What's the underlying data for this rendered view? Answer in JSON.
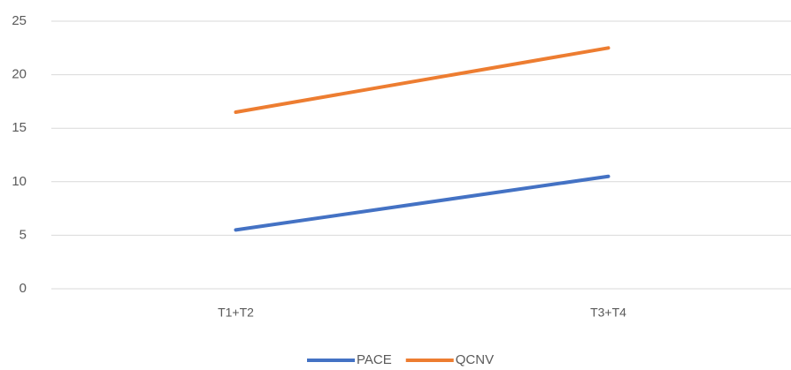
{
  "chart_data": {
    "type": "line",
    "categories": [
      "T1+T2",
      "T3+T4"
    ],
    "series": [
      {
        "name": "PACE",
        "color": "#4472c4",
        "values": [
          5.5,
          10.5
        ]
      },
      {
        "name": "QCNV",
        "color": "#ed7d31",
        "values": [
          16.5,
          22.5
        ]
      }
    ],
    "ylim": [
      0,
      25
    ],
    "yticks": [
      0,
      5,
      10,
      15,
      20,
      25
    ],
    "grid": true,
    "legend": "bottom"
  }
}
